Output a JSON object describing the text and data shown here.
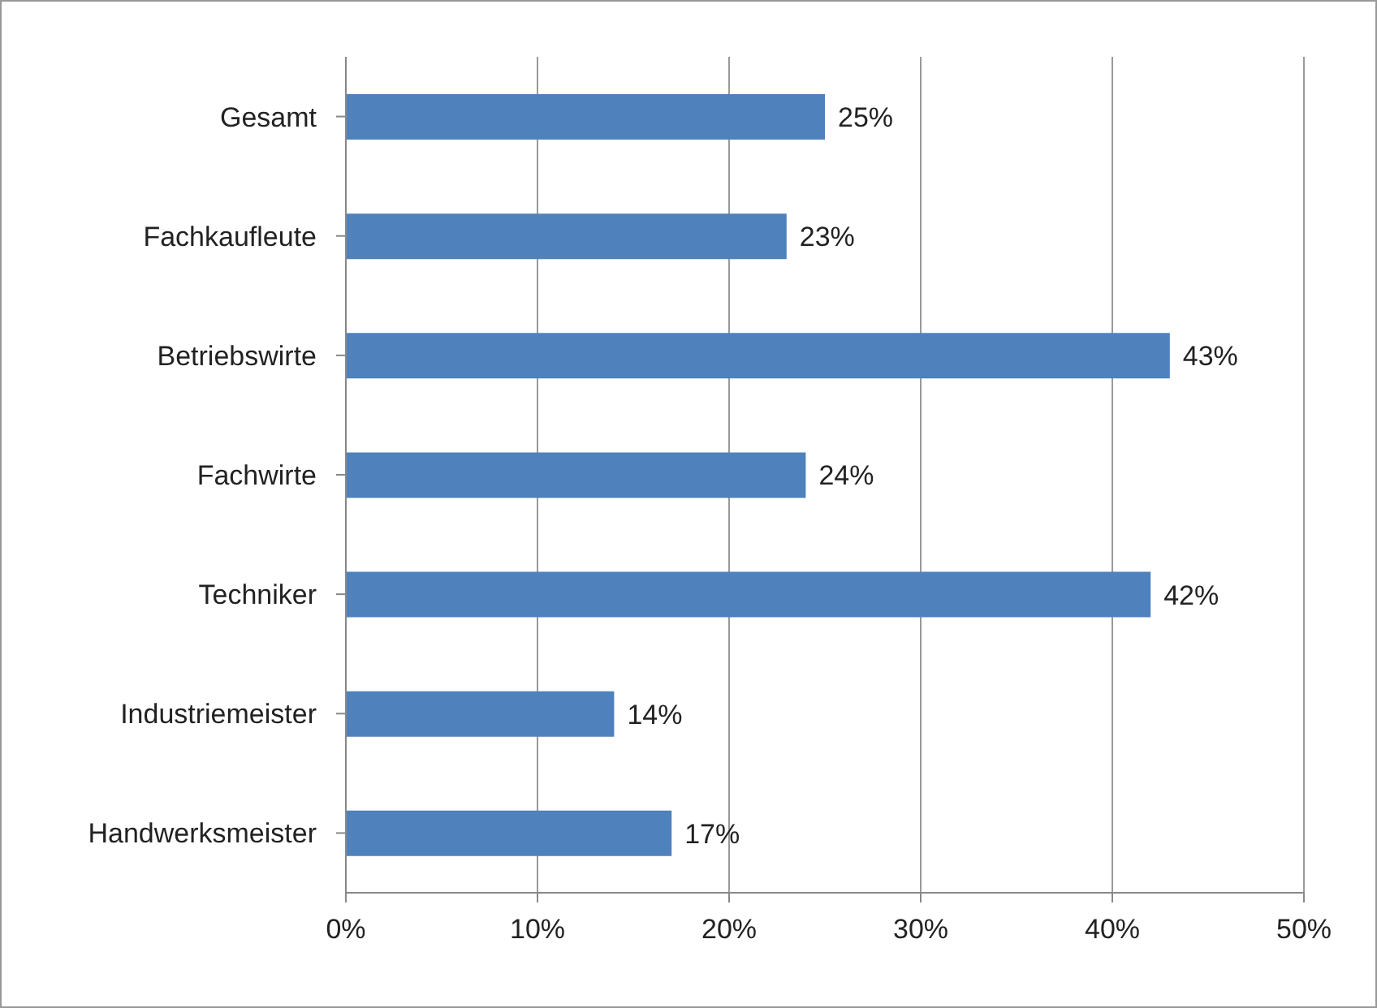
{
  "chart_data": {
    "type": "bar",
    "orientation": "horizontal",
    "categories": [
      "Gesamt",
      "Fachkaufleute",
      "Betriebswirte",
      "Fachwirte",
      "Techniker",
      "Industriemeister",
      "Handwerksmeister"
    ],
    "values": [
      25,
      23,
      43,
      24,
      42,
      14,
      17
    ],
    "value_labels": [
      "25%",
      "23%",
      "43%",
      "24%",
      "42%",
      "14%",
      "17%"
    ],
    "color": "#4f81bd",
    "xlim": [
      0,
      50
    ],
    "xticks": [
      {
        "value": 0,
        "label": "0%"
      },
      {
        "value": 10,
        "label": "10%"
      },
      {
        "value": 20,
        "label": "20%"
      },
      {
        "value": 30,
        "label": "30%"
      },
      {
        "value": 40,
        "label": "40%"
      },
      {
        "value": 50,
        "label": "50%"
      }
    ],
    "grid": "x",
    "legend": false
  }
}
